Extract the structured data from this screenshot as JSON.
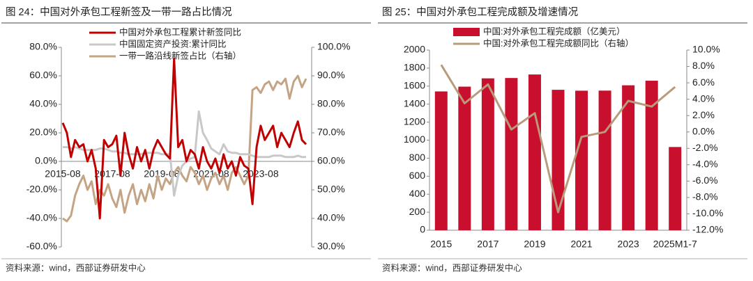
{
  "chart_data": [
    {
      "type": "line",
      "title": "图 24：中国对外承包工程新签及一带一路占比情况",
      "note": "资料来源：wind，西部证券研发中心",
      "categories": [
        "2015-08",
        null,
        null,
        null,
        null,
        null,
        null,
        null,
        null,
        null,
        null,
        null,
        "2017-08",
        null,
        null,
        null,
        null,
        null,
        null,
        null,
        null,
        null,
        null,
        null,
        "2019-08",
        null,
        null,
        null,
        null,
        null,
        null,
        null,
        null,
        null,
        null,
        null,
        "2021-08",
        null,
        null,
        null,
        null,
        null,
        null,
        null,
        null,
        null,
        null,
        null,
        "2023-08",
        null,
        null,
        null,
        null,
        null,
        null,
        null,
        null,
        null,
        null,
        null
      ],
      "ylim": [
        -60,
        80
      ],
      "yticks": [
        {
          "value": -60,
          "label": "-60.0%"
        },
        {
          "value": -40,
          "label": "-40.0%"
        },
        {
          "value": -20,
          "label": "-20.0%"
        },
        {
          "value": 0,
          "label": "0.0%"
        },
        {
          "value": 20,
          "label": "20.0%"
        },
        {
          "value": 40,
          "label": "40.0%"
        },
        {
          "value": 60,
          "label": "60.0%"
        },
        {
          "value": 80,
          "label": "80.0%"
        }
      ],
      "y2lim": [
        30,
        100
      ],
      "y2ticks": [
        {
          "value": 30,
          "label": "30.0%"
        },
        {
          "value": 40,
          "label": "40.0%"
        },
        {
          "value": 50,
          "label": "50.0%"
        },
        {
          "value": 60,
          "label": "60.0%"
        },
        {
          "value": 70,
          "label": "70.0%"
        },
        {
          "value": 80,
          "label": "80.0%"
        },
        {
          "value": 90,
          "label": "90.0%"
        },
        {
          "value": 100,
          "label": "100.0%"
        }
      ],
      "series": [
        {
          "name": "中国对外承包工程累计新签同比",
          "color": "#c00000",
          "values": [
            27,
            20,
            3,
            15,
            10,
            12,
            0,
            8,
            -5,
            -40,
            15,
            10,
            12,
            18,
            -10,
            20,
            5,
            -5,
            10,
            0,
            8,
            -5,
            8,
            15,
            10,
            5,
            2,
            72,
            10,
            15,
            0,
            8,
            5,
            -5,
            10,
            0,
            -5,
            2,
            -8,
            5,
            -5,
            0,
            -10,
            3,
            -3,
            -5,
            -30,
            10,
            25,
            15,
            20,
            25,
            10,
            20,
            15,
            10,
            20,
            28,
            15,
            12
          ]
        },
        {
          "name": "中国固定资产投资:累计同比",
          "color": "#c8c8c8",
          "values": [
            10,
            10,
            9,
            10,
            9,
            8,
            8,
            8,
            8,
            9,
            9,
            8,
            7,
            7,
            6,
            6,
            5,
            5,
            5,
            5,
            6,
            6,
            6,
            6,
            5,
            5,
            5,
            -24,
            -10,
            -3,
            0,
            2,
            3,
            35,
            20,
            15,
            9,
            7,
            5,
            12,
            7,
            6,
            6,
            5,
            5,
            5,
            4,
            3,
            3,
            3,
            3,
            4,
            4,
            4,
            3,
            3,
            3,
            4,
            3,
            3
          ]
        },
        {
          "name": "一带一路沿线新签占比（右轴）",
          "color": "#c4a484",
          "axis": "y2",
          "values": [
            40,
            39,
            41,
            48,
            52,
            55,
            50,
            53,
            45,
            50,
            48,
            52,
            47,
            44,
            50,
            42,
            48,
            52,
            45,
            50,
            46,
            52,
            47,
            55,
            50,
            54,
            52,
            56,
            58,
            55,
            53,
            58,
            56,
            52,
            55,
            50,
            54,
            56,
            52,
            55,
            50,
            56,
            58,
            55,
            52,
            55,
            85,
            86,
            84,
            87,
            88,
            85,
            88,
            87,
            89,
            82,
            88,
            90,
            86,
            89
          ]
        }
      ]
    },
    {
      "type": "bar",
      "title": "图 25：中国对外承包工程完成额及增速情况",
      "note": "资料来源：wind，西部证券研发中心",
      "categories": [
        "2015",
        null,
        "2017",
        null,
        "2019",
        null,
        "2021",
        null,
        "2023",
        null,
        "2025M1-7"
      ],
      "ylim": [
        0,
        2000
      ],
      "yticks": [
        0,
        200,
        400,
        600,
        800,
        1000,
        1200,
        1400,
        1600,
        1800,
        2000
      ],
      "y2lim": [
        -12,
        10
      ],
      "y2ticks": [
        {
          "value": -12,
          "label": "-12.0%"
        },
        {
          "value": -10,
          "label": "-10.0%"
        },
        {
          "value": -8,
          "label": "-8.0%"
        },
        {
          "value": -6,
          "label": "-6.0%"
        },
        {
          "value": -4,
          "label": "-4.0%"
        },
        {
          "value": -2,
          "label": "-2.0%"
        },
        {
          "value": 0,
          "label": "0.0%"
        },
        {
          "value": 2,
          "label": "2.0%"
        },
        {
          "value": 4,
          "label": "4.0%"
        },
        {
          "value": 6,
          "label": "6.0%"
        },
        {
          "value": 8,
          "label": "8.0%"
        },
        {
          "value": 10,
          "label": "10.0%"
        }
      ],
      "series": [
        {
          "name": "中国:对外承包工程完成额（亿美元）",
          "color": "#c8102e",
          "values": [
            1541,
            1594,
            1686,
            1690,
            1729,
            1559,
            1549,
            1550,
            1609,
            1660,
            924
          ]
        },
        {
          "name": "中国:对外承包工程完成额同比（右轴）",
          "color": "#b99b7b",
          "axis": "y2",
          "type": "line",
          "values": [
            8.2,
            3.5,
            5.8,
            0.3,
            2.3,
            -9.8,
            -0.6,
            0.0,
            3.8,
            3.1,
            5.5
          ]
        }
      ]
    }
  ]
}
